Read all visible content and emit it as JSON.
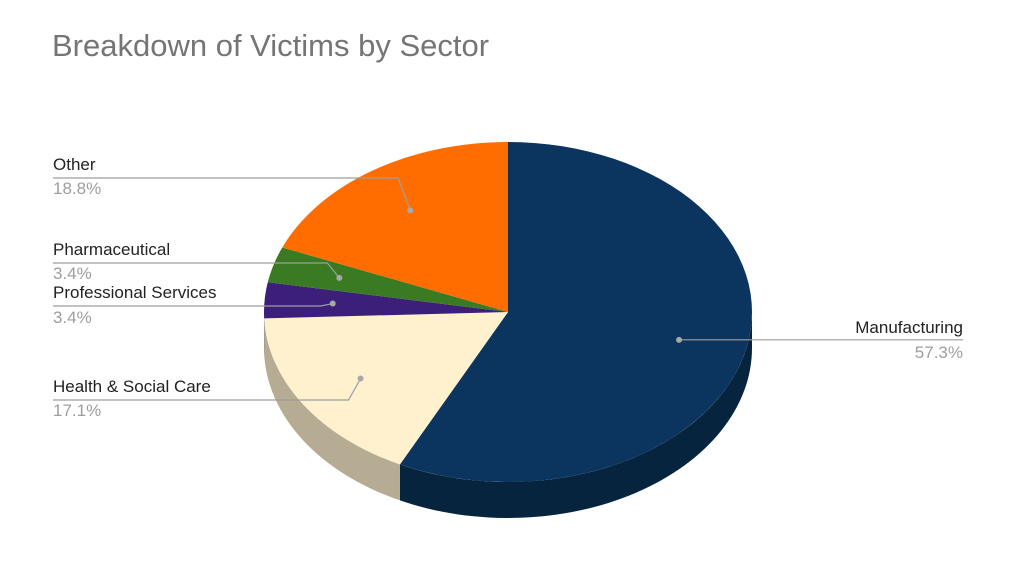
{
  "chart_data": {
    "type": "pie",
    "title": "Breakdown of Victims by Sector",
    "style": "3d",
    "slices": [
      {
        "label": "Manufacturing",
        "percent_label": "57.3%",
        "value": 57.3,
        "color": "#0b355e",
        "side_color": "#07243f",
        "label_side": "right"
      },
      {
        "label": "Health & Social Care",
        "percent_label": "17.1%",
        "value": 17.1,
        "color": "#fff0ce",
        "side_color": "#b6ab93",
        "label_side": "left"
      },
      {
        "label": "Professional Services",
        "percent_label": "3.4%",
        "value": 3.4,
        "color": "#3b1f78",
        "side_color": "#2a1656",
        "label_side": "left"
      },
      {
        "label": "Pharmaceutical",
        "percent_label": "3.4%",
        "value": 3.4,
        "color": "#3a7a22",
        "side_color": "#295718",
        "label_side": "left"
      },
      {
        "label": "Other",
        "percent_label": "18.8%",
        "value": 18.8,
        "color": "#ff6d00",
        "side_color": "#b34c00",
        "label_side": "left"
      }
    ]
  }
}
